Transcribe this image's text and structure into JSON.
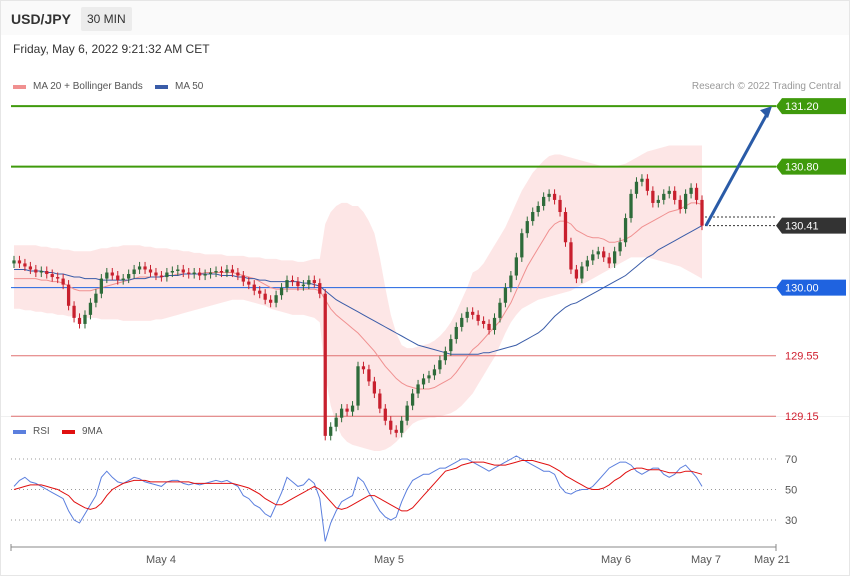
{
  "header": {
    "pair": "USD/JPY",
    "timeframe": "30 MIN",
    "timestamp": "Friday, May 6, 2022 9:21:32 AM CET"
  },
  "legend": {
    "ma20_bb": "MA 20 + Bollinger Bands",
    "ma50": "MA 50",
    "research": "Research © 2022 Trading Central",
    "rsi": "RSI",
    "rsi_ma": "9MA"
  },
  "colors": {
    "bull": "#2e6b3a",
    "bear": "#c8202e",
    "bb_fill": "#fde2e2",
    "ma20": "#f09090",
    "ma50": "#3a5ca8",
    "green_level": "#3f9a0c",
    "red_level": "#e07070",
    "pivot": "#1f63e0",
    "current": "#333333",
    "rsi": "#5b7fde",
    "rsi_ma": "#e01010",
    "arrow": "#2a5ba7"
  },
  "chart_data": {
    "type": "candlestick",
    "y_range": [
      128.9,
      131.32
    ],
    "levels": [
      {
        "value": 131.2,
        "label": "131.20",
        "kind": "resistance2"
      },
      {
        "value": 130.8,
        "label": "130.80",
        "kind": "resistance1"
      },
      {
        "value": 130.41,
        "label": "130.41",
        "kind": "current"
      },
      {
        "value": 130.0,
        "label": "130.00",
        "kind": "pivot"
      },
      {
        "value": 129.55,
        "label": "129.55",
        "kind": "support1"
      },
      {
        "value": 129.15,
        "label": "129.15",
        "kind": "support2"
      }
    ],
    "x_labels": [
      "May 4",
      "May 5",
      "May 6",
      "May 7",
      "May 21"
    ],
    "close": [
      130.18,
      130.16,
      130.14,
      130.12,
      130.1,
      130.11,
      130.09,
      130.07,
      130.06,
      130.02,
      129.88,
      129.8,
      129.76,
      129.82,
      129.9,
      129.96,
      130.06,
      130.1,
      130.08,
      130.05,
      130.06,
      130.09,
      130.12,
      130.14,
      130.12,
      130.1,
      130.08,
      130.07,
      130.1,
      130.11,
      130.12,
      130.1,
      130.09,
      130.1,
      130.08,
      130.09,
      130.1,
      130.11,
      130.1,
      130.12,
      130.1,
      130.08,
      130.04,
      130.02,
      129.98,
      129.96,
      129.92,
      129.9,
      129.95,
      130.0,
      130.05,
      130.04,
      130.01,
      130.02,
      130.05,
      130.03,
      129.96,
      129.02,
      129.08,
      129.14,
      129.2,
      129.18,
      129.22,
      129.48,
      129.46,
      129.38,
      129.3,
      129.2,
      129.12,
      129.06,
      129.04,
      129.12,
      129.22,
      129.3,
      129.36,
      129.4,
      129.42,
      129.46,
      129.52,
      129.58,
      129.66,
      129.74,
      129.8,
      129.84,
      129.82,
      129.78,
      129.76,
      129.72,
      129.8,
      129.9,
      130.0,
      130.08,
      130.2,
      130.36,
      130.44,
      130.5,
      130.54,
      130.6,
      130.62,
      130.58,
      130.5,
      130.3,
      130.12,
      130.06,
      130.14,
      130.18,
      130.22,
      130.24,
      130.2,
      130.16,
      130.24,
      130.3,
      130.46,
      130.62,
      130.7,
      130.72,
      130.64,
      130.56,
      130.58,
      130.62,
      130.64,
      130.58,
      130.52,
      130.62,
      130.66,
      130.58,
      130.41
    ],
    "ma20": [
      130.06,
      130.06,
      130.06,
      130.06,
      130.06,
      130.05,
      130.05,
      130.04,
      130.04,
      130.03,
      130.01,
      129.99,
      129.98,
      129.98,
      129.98,
      129.99,
      130.0,
      130.01,
      130.02,
      130.03,
      130.04,
      130.05,
      130.06,
      130.07,
      130.07,
      130.07,
      130.07,
      130.07,
      130.08,
      130.08,
      130.09,
      130.09,
      130.09,
      130.09,
      130.09,
      130.1,
      130.1,
      130.1,
      130.1,
      130.1,
      130.1,
      130.09,
      130.08,
      130.07,
      130.06,
      130.04,
      130.02,
      130.0,
      129.99,
      129.99,
      129.99,
      129.99,
      129.99,
      129.99,
      129.99,
      129.99,
      129.98,
      129.92,
      129.86,
      129.82,
      129.79,
      129.76,
      129.73,
      129.7,
      129.66,
      129.62,
      129.58,
      129.53,
      129.48,
      129.44,
      129.4,
      129.37,
      129.35,
      129.34,
      129.33,
      129.33,
      129.33,
      129.34,
      129.36,
      129.38,
      129.4,
      129.44,
      129.49,
      129.54,
      129.59,
      129.62,
      129.66,
      129.7,
      129.74,
      129.78,
      129.84,
      129.9,
      129.98,
      130.06,
      130.14,
      130.2,
      130.26,
      130.32,
      130.38,
      130.42,
      130.44,
      130.44,
      130.42,
      130.38,
      130.36,
      130.34,
      130.33,
      130.33,
      130.32,
      130.3,
      130.3,
      130.31,
      130.32,
      130.34,
      130.37,
      130.4,
      130.42,
      130.44,
      130.46,
      130.48,
      130.5,
      130.51,
      130.52,
      130.54,
      130.56,
      130.56,
      130.55
    ],
    "bb_upper": [
      130.28,
      130.28,
      130.28,
      130.28,
      130.28,
      130.27,
      130.27,
      130.26,
      130.26,
      130.25,
      130.25,
      130.24,
      130.24,
      130.24,
      130.24,
      130.25,
      130.26,
      130.26,
      130.27,
      130.27,
      130.28,
      130.28,
      130.28,
      130.28,
      130.27,
      130.27,
      130.26,
      130.26,
      130.26,
      130.25,
      130.25,
      130.24,
      130.24,
      130.23,
      130.23,
      130.22,
      130.22,
      130.22,
      130.22,
      130.21,
      130.21,
      130.21,
      130.21,
      130.2,
      130.2,
      130.2,
      130.19,
      130.19,
      130.19,
      130.18,
      130.18,
      130.18,
      130.17,
      130.17,
      130.18,
      130.19,
      130.19,
      130.42,
      130.5,
      130.54,
      130.56,
      130.56,
      130.54,
      130.54,
      130.5,
      130.44,
      130.36,
      130.2,
      130.0,
      129.82,
      129.7,
      129.62,
      129.6,
      129.6,
      129.61,
      129.62,
      129.63,
      129.65,
      129.68,
      129.72,
      129.77,
      129.84,
      129.92,
      130.0,
      130.1,
      130.12,
      130.16,
      130.22,
      130.28,
      130.34,
      130.4,
      130.48,
      130.56,
      130.64,
      130.7,
      130.76,
      130.8,
      130.84,
      130.87,
      130.88,
      130.88,
      130.87,
      130.86,
      130.85,
      130.84,
      130.83,
      130.82,
      130.81,
      130.8,
      130.8,
      130.8,
      130.81,
      130.82,
      130.84,
      130.86,
      130.88,
      130.9,
      130.91,
      130.92,
      130.93,
      130.94,
      130.94,
      130.94,
      130.94,
      130.94,
      130.94,
      130.94
    ],
    "bb_lower": [
      129.86,
      129.86,
      129.85,
      129.85,
      129.84,
      129.84,
      129.83,
      129.83,
      129.82,
      129.82,
      129.81,
      129.81,
      129.8,
      129.8,
      129.8,
      129.8,
      129.79,
      129.79,
      129.79,
      129.79,
      129.78,
      129.78,
      129.78,
      129.78,
      129.78,
      129.78,
      129.79,
      129.79,
      129.8,
      129.81,
      129.82,
      129.83,
      129.84,
      129.85,
      129.86,
      129.87,
      129.88,
      129.89,
      129.9,
      129.91,
      129.92,
      129.92,
      129.92,
      129.91,
      129.9,
      129.89,
      129.88,
      129.86,
      129.85,
      129.84,
      129.83,
      129.82,
      129.82,
      129.82,
      129.81,
      129.8,
      129.77,
      129.42,
      129.22,
      129.1,
      129.02,
      128.98,
      128.96,
      128.95,
      128.94,
      128.93,
      128.92,
      128.92,
      128.93,
      128.95,
      128.98,
      129.02,
      129.06,
      129.1,
      129.12,
      129.13,
      129.14,
      129.14,
      129.15,
      129.16,
      129.17,
      129.19,
      129.22,
      129.26,
      129.3,
      129.36,
      129.42,
      129.48,
      129.54,
      129.62,
      129.7,
      129.77,
      129.82,
      129.86,
      129.88,
      129.9,
      129.92,
      129.93,
      129.94,
      129.95,
      129.96,
      129.97,
      129.98,
      130.0,
      130.02,
      130.04,
      130.06,
      130.08,
      130.1,
      130.12,
      130.14,
      130.16,
      130.18,
      130.2,
      130.2,
      130.2,
      130.2,
      130.19,
      130.18,
      130.17,
      130.16,
      130.15,
      130.14,
      130.12,
      130.1,
      130.08,
      130.06
    ],
    "ma50": [
      130.12,
      130.12,
      130.12,
      130.11,
      130.11,
      130.11,
      130.1,
      130.1,
      130.09,
      130.09,
      130.08,
      130.07,
      130.07,
      130.06,
      130.06,
      130.06,
      130.05,
      130.05,
      130.05,
      130.05,
      130.05,
      130.05,
      130.06,
      130.06,
      130.06,
      130.07,
      130.07,
      130.07,
      130.08,
      130.08,
      130.08,
      130.09,
      130.09,
      130.09,
      130.09,
      130.09,
      130.09,
      130.09,
      130.08,
      130.08,
      130.08,
      130.07,
      130.07,
      130.06,
      130.06,
      130.05,
      130.05,
      130.04,
      130.04,
      130.04,
      130.04,
      130.04,
      130.04,
      130.03,
      130.03,
      130.02,
      130.01,
      129.98,
      129.95,
      129.92,
      129.9,
      129.88,
      129.86,
      129.84,
      129.82,
      129.8,
      129.78,
      129.76,
      129.74,
      129.72,
      129.7,
      129.68,
      129.66,
      129.64,
      129.62,
      129.61,
      129.6,
      129.59,
      129.58,
      129.57,
      129.56,
      129.56,
      129.56,
      129.56,
      129.56,
      129.56,
      129.57,
      129.57,
      129.58,
      129.59,
      129.6,
      129.61,
      129.62,
      129.64,
      129.66,
      129.68,
      129.7,
      129.73,
      129.77,
      129.81,
      129.84,
      129.87,
      129.89,
      129.9,
      129.92,
      129.94,
      129.96,
      129.98,
      130.0,
      130.02,
      130.04,
      130.06,
      130.08,
      130.11,
      130.14,
      130.17,
      130.2,
      130.22,
      130.25,
      130.27,
      130.29,
      130.31,
      130.33,
      130.35,
      130.37,
      130.39,
      130.41
    ],
    "rsi": [
      52,
      56,
      58,
      55,
      54,
      52,
      50,
      48,
      46,
      44,
      36,
      30,
      28,
      34,
      40,
      46,
      58,
      62,
      58,
      55,
      54,
      56,
      58,
      57,
      55,
      54,
      53,
      52,
      55,
      56,
      56,
      54,
      53,
      54,
      53,
      54,
      55,
      56,
      55,
      56,
      54,
      52,
      46,
      44,
      40,
      38,
      34,
      32,
      40,
      48,
      58,
      55,
      52,
      53,
      57,
      54,
      44,
      16,
      28,
      36,
      42,
      44,
      46,
      58,
      55,
      48,
      42,
      36,
      32,
      30,
      32,
      42,
      50,
      56,
      58,
      60,
      60,
      62,
      64,
      64,
      66,
      68,
      70,
      70,
      68,
      66,
      64,
      62,
      64,
      66,
      68,
      70,
      72,
      70,
      68,
      66,
      64,
      62,
      62,
      60,
      52,
      48,
      47,
      49,
      50,
      50,
      52,
      56,
      60,
      64,
      66,
      68,
      68,
      66,
      62,
      60,
      62,
      64,
      64,
      60,
      58,
      60,
      64,
      66,
      62,
      58,
      52
    ],
    "rsi_ma": [
      50,
      51,
      52,
      53,
      53,
      53,
      52,
      51,
      50,
      48,
      46,
      42,
      40,
      38,
      37,
      38,
      41,
      46,
      50,
      52,
      54,
      55,
      56,
      56,
      56,
      55,
      55,
      55,
      55,
      55,
      55,
      55,
      55,
      54,
      54,
      54,
      54,
      54,
      54,
      54,
      54,
      53,
      52,
      51,
      49,
      47,
      44,
      42,
      40,
      40,
      42,
      44,
      46,
      48,
      50,
      52,
      50,
      46,
      42,
      38,
      37,
      38,
      40,
      42,
      44,
      46,
      46,
      44,
      42,
      40,
      38,
      36,
      36,
      38,
      42,
      46,
      50,
      54,
      58,
      62,
      63,
      64,
      66,
      67,
      68,
      68,
      68,
      67,
      66,
      66,
      66,
      67,
      68,
      69,
      69,
      69,
      68,
      67,
      66,
      64,
      62,
      59,
      57,
      55,
      53,
      51,
      50,
      50,
      51,
      53,
      56,
      58,
      61,
      63,
      64,
      64,
      63,
      63,
      63,
      62,
      61,
      61,
      61,
      62,
      62,
      61,
      60
    ],
    "rsi_levels": [
      70,
      50,
      30
    ]
  }
}
